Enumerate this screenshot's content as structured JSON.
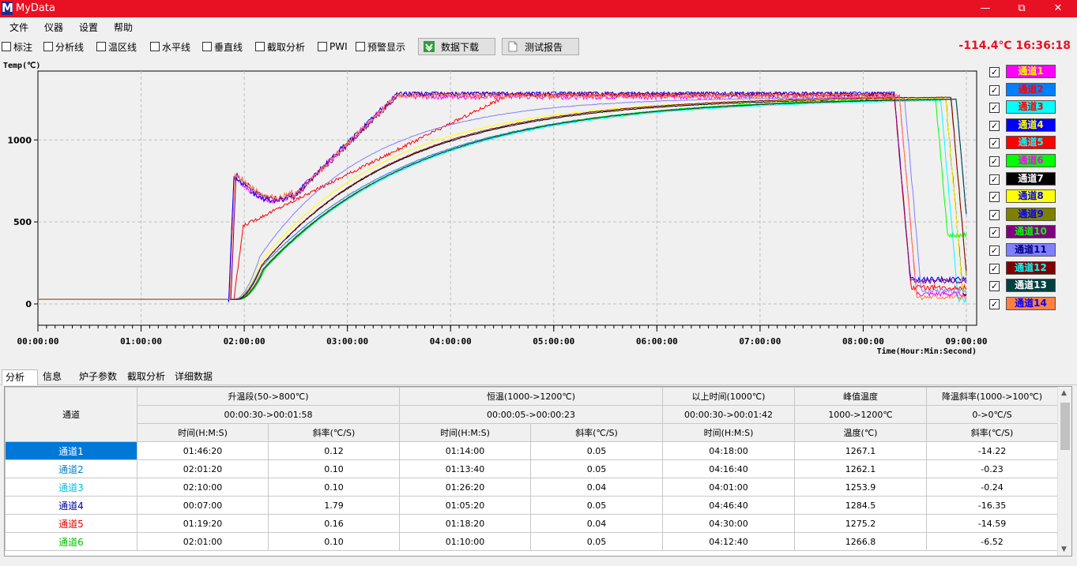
{
  "window": {
    "title": "MyData",
    "logo": "M"
  },
  "menu": [
    "文件",
    "仪器",
    "设置",
    "帮助"
  ],
  "toolbar": {
    "checkboxes": [
      "标注",
      "分析线",
      "温区线",
      "水平线",
      "垂直线",
      "截取分析",
      "PWI",
      "预警显示"
    ],
    "download_button": "数据下载",
    "report_button": "测试报告",
    "readout": "-114.4℃ 16:36:18"
  },
  "chart_data": {
    "type": "line",
    "ylabel": "Temp(℃)",
    "xlabel": "Time(Hour:Min:Second)",
    "x_ticks": [
      "00:00:00",
      "01:00:00",
      "02:00:00",
      "03:00:00",
      "04:00:00",
      "05:00:00",
      "06:00:00",
      "07:00:00",
      "08:00:00",
      "09:00:00"
    ],
    "y_ticks": [
      0,
      500,
      1000
    ],
    "ylim": [
      -130,
      1420
    ],
    "xlim_hours": [
      0,
      9.0
    ],
    "grid": true,
    "legend_position": "right",
    "series": [
      {
        "name": "通道1",
        "color": "#ff00ff",
        "text": "#ffff00"
      },
      {
        "name": "通道2",
        "color": "#0080ff",
        "text": "#ff0000"
      },
      {
        "name": "通道3",
        "color": "#00ffff",
        "text": "#ff0000"
      },
      {
        "name": "通道4",
        "color": "#0000ff",
        "text": "#ffff00"
      },
      {
        "name": "通道5",
        "color": "#ff0000",
        "text": "#00ffff"
      },
      {
        "name": "通道6",
        "color": "#00ff00",
        "text": "#ff00ff"
      },
      {
        "name": "通道7",
        "color": "#000000",
        "text": "#ffffff"
      },
      {
        "name": "通道8",
        "color": "#ffff00",
        "text": "#0000ff"
      },
      {
        "name": "通道9",
        "color": "#808000",
        "text": "#0000ff"
      },
      {
        "name": "通道10",
        "color": "#800080",
        "text": "#00ff00"
      },
      {
        "name": "通道11",
        "color": "#8080ff",
        "text": "#000080"
      },
      {
        "name": "通道12",
        "color": "#800000",
        "text": "#00ffff"
      },
      {
        "name": "通道13",
        "color": "#004040",
        "text": "#ffffff"
      },
      {
        "name": "通道14",
        "color": "#ff8040",
        "text": "#0000ff"
      }
    ]
  },
  "tabs": [
    "分析",
    "信息",
    "炉子参数",
    "截取分析",
    "详细数据"
  ],
  "table": {
    "channel_header": "通道",
    "groups": [
      {
        "title": "升温段(50->800℃)",
        "range": "00:00:30->00:01:58",
        "cols": [
          "时间(H:M:S)",
          "斜率(℃/S)"
        ],
        "span": 2
      },
      {
        "title": "恒温(1000->1200℃)",
        "range": "00:00:05->00:00:23",
        "cols": [
          "时间(H:M:S)",
          "斜率(℃/S)"
        ],
        "span": 2
      },
      {
        "title": "以上时间(1000℃)",
        "range": "00:00:30->00:01:42",
        "cols": [
          "时间(H:M:S)"
        ],
        "span": 1
      },
      {
        "title": "峰值温度",
        "range": "1000->1200℃",
        "cols": [
          "温度(℃)"
        ],
        "span": 1
      },
      {
        "title": "降温斜率(1000->100℃)",
        "range": "0->0℃/S",
        "cols": [
          "斜率(℃/S)"
        ],
        "span": 1
      }
    ],
    "rows": [
      {
        "ch": "通道1",
        "color": "#ffffff",
        "bg": "#0078d7",
        "v": [
          "01:46:20",
          "0.12",
          "01:14:00",
          "0.05",
          "04:18:00",
          "1267.1",
          "-14.22"
        ]
      },
      {
        "ch": "通道2",
        "color": "#0080c0",
        "bg": "#ffffff",
        "v": [
          "02:01:20",
          "0.10",
          "01:13:40",
          "0.05",
          "04:16:40",
          "1262.1",
          "-0.23"
        ]
      },
      {
        "ch": "通道3",
        "color": "#00c0e0",
        "bg": "#ffffff",
        "v": [
          "02:10:00",
          "0.10",
          "01:26:20",
          "0.04",
          "04:01:00",
          "1253.9",
          "-0.24"
        ]
      },
      {
        "ch": "通道4",
        "color": "#0000a0",
        "bg": "#ffffff",
        "v": [
          "00:07:00",
          "1.79",
          "01:05:20",
          "0.05",
          "04:46:40",
          "1284.5",
          "-16.35"
        ]
      },
      {
        "ch": "通道5",
        "color": "#e00000",
        "bg": "#ffffff",
        "v": [
          "01:19:20",
          "0.16",
          "01:18:20",
          "0.04",
          "04:30:00",
          "1275.2",
          "-14.59"
        ]
      },
      {
        "ch": "通道6",
        "color": "#00c000",
        "bg": "#ffffff",
        "v": [
          "02:01:00",
          "0.10",
          "01:10:00",
          "0.05",
          "04:12:40",
          "1266.8",
          "-6.52"
        ]
      }
    ]
  }
}
